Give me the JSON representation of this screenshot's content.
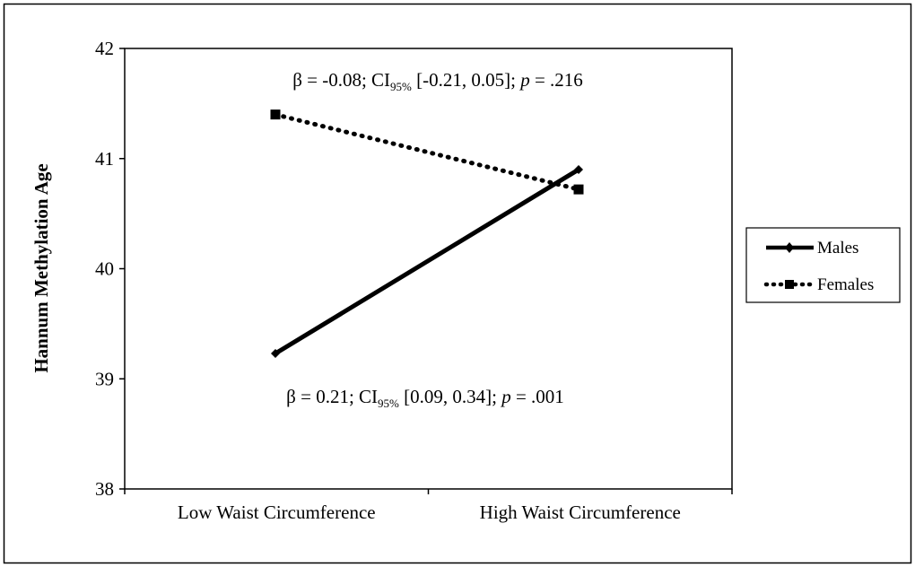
{
  "chart_data": {
    "type": "line",
    "title": "",
    "xlabel": "",
    "ylabel": "Hannum Methylation Age",
    "categories": [
      "Low Waist Circumference",
      "High Waist Circumference"
    ],
    "ylim": [
      38,
      42
    ],
    "yticks": [
      38,
      39,
      40,
      41,
      42
    ],
    "ytick_labels": [
      "38",
      "39",
      "40",
      "41",
      "42"
    ],
    "grid": false,
    "legend_position": "right",
    "series": [
      {
        "name": "Males",
        "values": [
          39.23,
          40.9
        ],
        "style": "solid",
        "marker": "diamond",
        "color": "#000000"
      },
      {
        "name": "Females",
        "values": [
          41.4,
          40.72
        ],
        "style": "dotted",
        "marker": "square",
        "color": "#000000"
      }
    ],
    "annotations": [
      {
        "series": "Females",
        "beta_prefix": "β = -0.08; CI",
        "ci_sub": "95%",
        "ci_text": " [-0.21, 0.05]; ",
        "p_label": "p",
        "p_text": " = .216"
      },
      {
        "series": "Males",
        "beta_prefix": "β = 0.21; CI",
        "ci_sub": "95%",
        "ci_text": " [0.09, 0.34]; ",
        "p_label": "p",
        "p_text": " = .001"
      }
    ]
  }
}
